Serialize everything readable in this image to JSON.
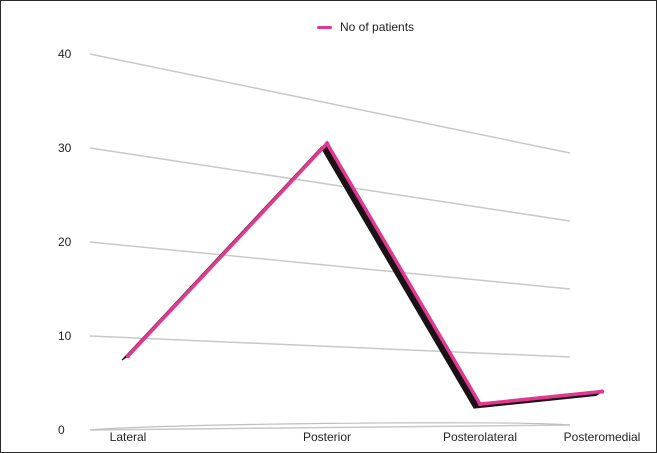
{
  "chart_data": {
    "type": "line",
    "title": "",
    "xlabel": "",
    "ylabel": "",
    "categories": [
      "Lateral",
      "Posterior",
      "Posterolateral",
      "Posteromedial"
    ],
    "series": [
      {
        "name": "No of patients",
        "values": [
          8,
          35,
          3,
          5
        ],
        "color": "#e2388f"
      }
    ],
    "ylim": [
      0,
      40
    ],
    "yticks": [
      "0",
      "10",
      "20",
      "30",
      "40"
    ],
    "grid": true,
    "legend_position": "top-center",
    "style": "3d"
  }
}
